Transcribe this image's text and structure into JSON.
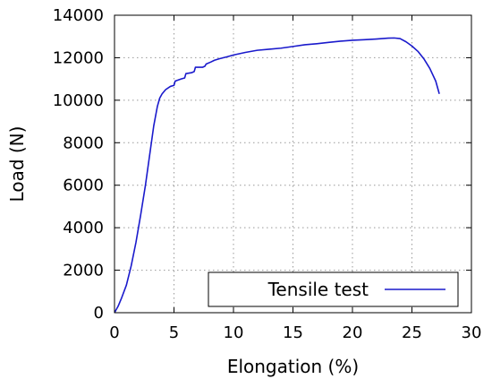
{
  "chart_data": {
    "type": "line",
    "title": "",
    "xlabel": "Elongation (%)",
    "ylabel": "Load (N)",
    "xlim": [
      0,
      30
    ],
    "ylim": [
      0,
      14000
    ],
    "xticks": [
      0,
      5,
      10,
      15,
      20,
      25,
      30
    ],
    "yticks": [
      0,
      2000,
      4000,
      6000,
      8000,
      10000,
      12000,
      14000
    ],
    "grid": "dotted",
    "legend_position": "bottom-right",
    "series": [
      {
        "name": "Tensile test",
        "color": "#1a1acc",
        "x": [
          0,
          0.3,
          0.6,
          1.0,
          1.4,
          1.8,
          2.2,
          2.6,
          3.0,
          3.3,
          3.6,
          3.8,
          4.0,
          4.3,
          4.7,
          5.0,
          5.1,
          5.6,
          5.9,
          6.0,
          6.5,
          6.7,
          6.8,
          7.4,
          7.6,
          7.7,
          8.1,
          8.4,
          8.8,
          9.5,
          10.0,
          11.0,
          12.0,
          13.0,
          14.0,
          15.0,
          16.0,
          17.0,
          18.0,
          19.0,
          20.0,
          21.0,
          22.0,
          23.0,
          23.5,
          24.0,
          24.5,
          25.0,
          25.5,
          26.0,
          26.5,
          27.0,
          27.3
        ],
        "y": [
          0,
          300,
          700,
          1300,
          2200,
          3300,
          4600,
          6000,
          7600,
          8800,
          9700,
          10100,
          10300,
          10500,
          10650,
          10700,
          10900,
          11000,
          11050,
          11250,
          11300,
          11350,
          11550,
          11550,
          11600,
          11700,
          11800,
          11880,
          11950,
          12050,
          12130,
          12250,
          12350,
          12400,
          12450,
          12530,
          12610,
          12660,
          12720,
          12780,
          12820,
          12850,
          12880,
          12920,
          12930,
          12900,
          12750,
          12550,
          12300,
          11950,
          11500,
          10900,
          10300
        ]
      }
    ]
  }
}
